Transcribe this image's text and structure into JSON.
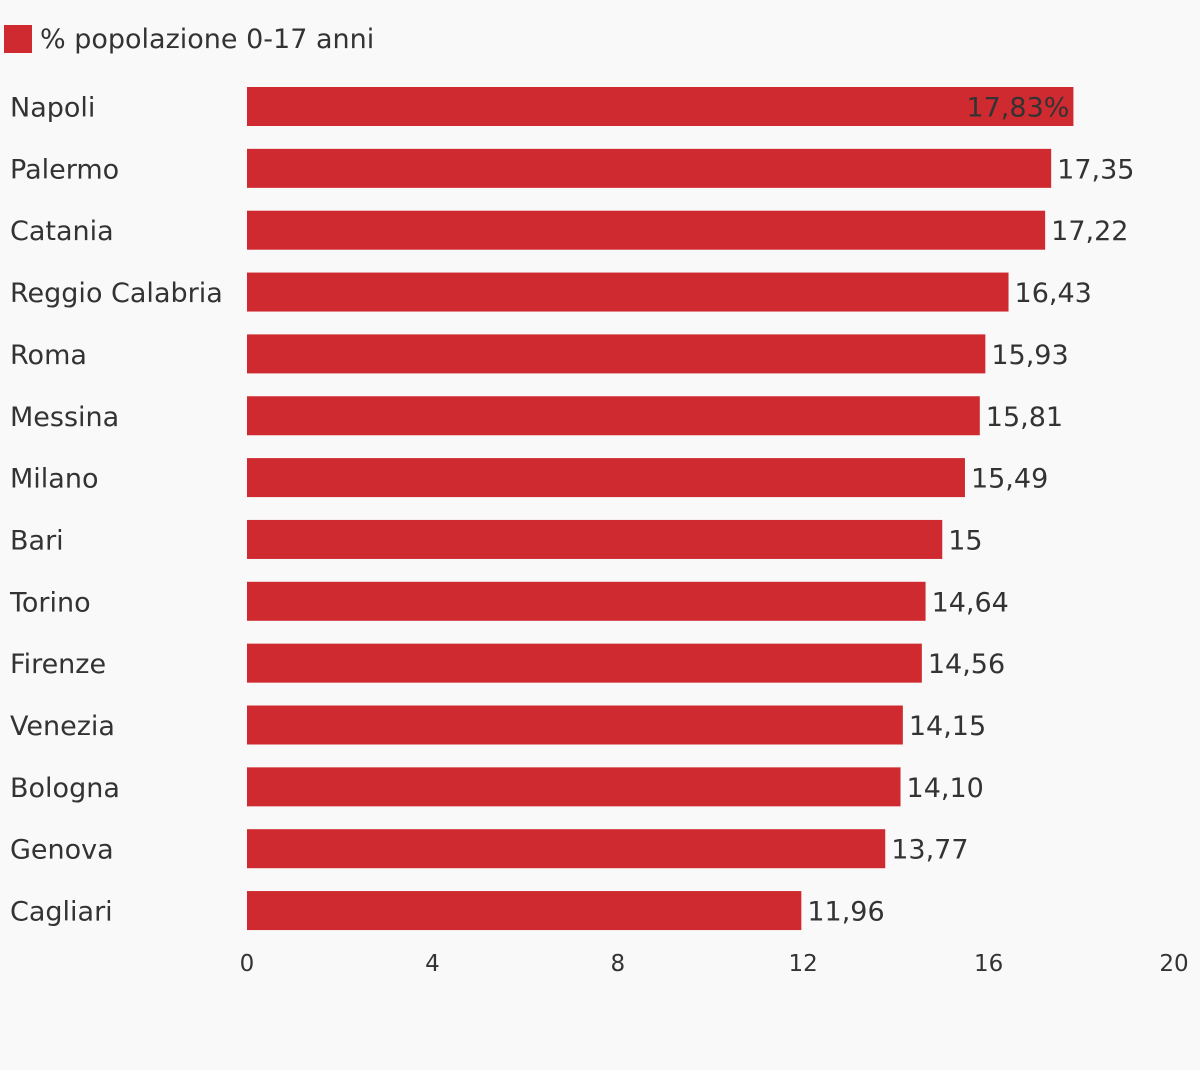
{
  "legend": {
    "label": "% popolazione 0-17 anni",
    "color": "#cf2a30"
  },
  "chart_data": {
    "type": "bar",
    "orientation": "horizontal",
    "bar_color": "#cf2a30",
    "background": "#f9f9f9",
    "categories": [
      "Napoli",
      "Palermo",
      "Catania",
      "Reggio Calabria",
      "Roma",
      "Messina",
      "Milano",
      "Bari",
      "Torino",
      "Firenze",
      "Venezia",
      "Bologna",
      "Genova",
      "Cagliari"
    ],
    "series": [
      {
        "name": "% popolazione 0-17 anni",
        "values": [
          17.83,
          17.35,
          17.22,
          16.43,
          15.93,
          15.81,
          15.49,
          15,
          14.64,
          14.56,
          14.15,
          14.1,
          13.77,
          11.96
        ],
        "labels": [
          "17,83%",
          "17,35",
          "17,22",
          "16,43",
          "15,93",
          "15,81",
          "15,49",
          "15",
          "14,64",
          "14,56",
          "14,15",
          "14,10",
          "13,77",
          "11,96"
        ]
      }
    ],
    "xlim": [
      0,
      20
    ],
    "xticks": [
      0,
      4,
      8,
      12,
      16,
      20
    ],
    "xtick_labels": [
      "0",
      "4",
      "8",
      "12",
      "16",
      "20"
    ],
    "grid": false,
    "legend_position": "top-left",
    "title": "",
    "xlabel": "",
    "ylabel": ""
  }
}
